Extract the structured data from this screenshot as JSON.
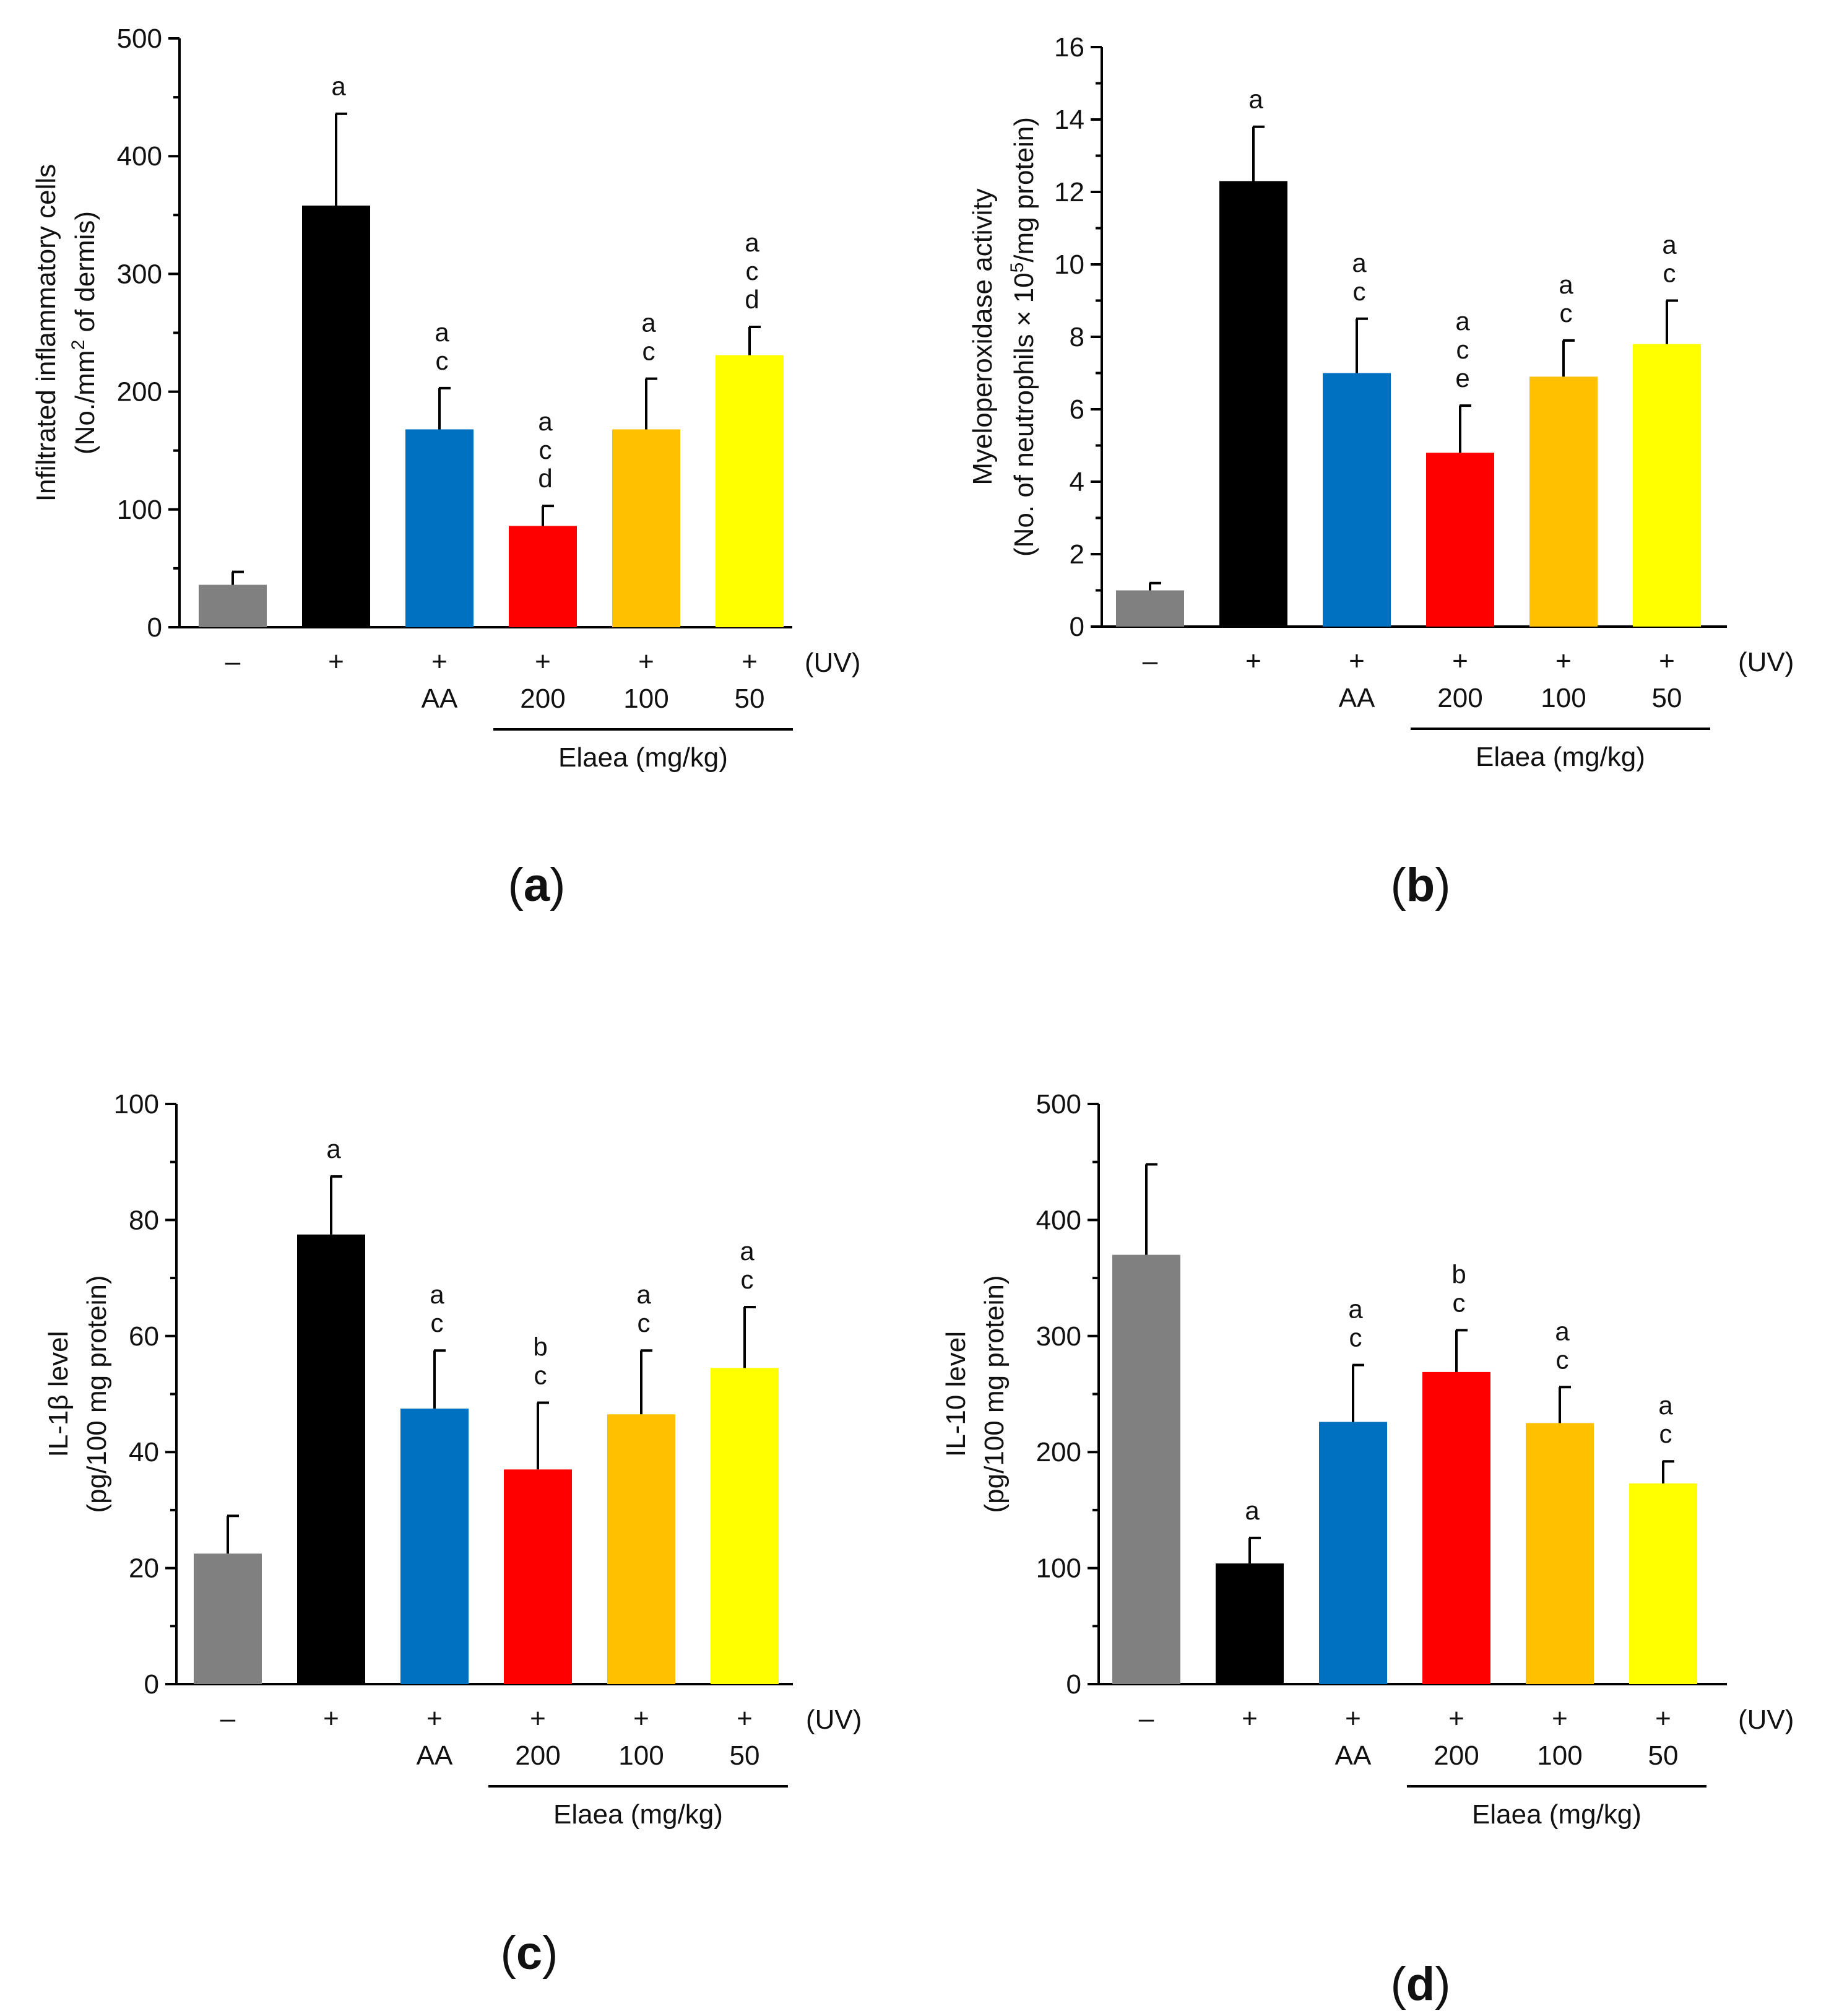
{
  "chart_data": [
    {
      "panel": "a",
      "type": "bar",
      "ylabel_line1": "Infiltrated inflammatory cells",
      "ylabel_line2_pre": "(No./mm",
      "ylabel_line2_sup": "2",
      "ylabel_line2_post": " of dermis)",
      "ylim": [
        0,
        500
      ],
      "yticks": [
        0,
        100,
        200,
        300,
        400,
        500
      ],
      "uv_label": "(UV)",
      "uv_row": [
        "–",
        "+",
        "+",
        "+",
        "+",
        "+"
      ],
      "treatment_row": [
        "",
        "",
        "AA",
        "200",
        "100",
        "50"
      ],
      "bracket_label": "Elaea (mg/kg)",
      "values": [
        36,
        358,
        168,
        86,
        168,
        231
      ],
      "errors": [
        11,
        78,
        35,
        17,
        43,
        24
      ],
      "significance": [
        [],
        [
          "a"
        ],
        [
          "a",
          "c"
        ],
        [
          "a",
          "c",
          "d"
        ],
        [
          "a",
          "c"
        ],
        [
          "a",
          "c",
          "d"
        ]
      ],
      "colors": [
        "#808080",
        "#000000",
        "#0070c0",
        "#ff0000",
        "#ffc000",
        "#ffff00"
      ]
    },
    {
      "panel": "b",
      "type": "bar",
      "ylabel_line1": "Myeloperoxidase activity",
      "ylabel_line2_pre": "(No. of neutrophils × 10",
      "ylabel_line2_sup": "5",
      "ylabel_line2_post": "/mg protein)",
      "ylim": [
        0,
        16
      ],
      "yticks": [
        0,
        2,
        4,
        6,
        8,
        10,
        12,
        14,
        16
      ],
      "uv_label": "(UV)",
      "uv_row": [
        "–",
        "+",
        "+",
        "+",
        "+",
        "+"
      ],
      "treatment_row": [
        "",
        "",
        "AA",
        "200",
        "100",
        "50"
      ],
      "bracket_label": "Elaea (mg/kg)",
      "values": [
        1.0,
        12.3,
        7.0,
        4.8,
        6.9,
        7.8
      ],
      "errors": [
        0.2,
        1.5,
        1.5,
        1.3,
        1.0,
        1.2
      ],
      "significance": [
        [],
        [
          "a"
        ],
        [
          "a",
          "c"
        ],
        [
          "a",
          "c",
          "e"
        ],
        [
          "a",
          "c"
        ],
        [
          "a",
          "c"
        ]
      ],
      "colors": [
        "#808080",
        "#000000",
        "#0070c0",
        "#ff0000",
        "#ffc000",
        "#ffff00"
      ]
    },
    {
      "panel": "c",
      "type": "bar",
      "ylabel_line1": "IL-1β level",
      "ylabel_line2_pre": "(pg/100 mg protein)",
      "ylabel_line2_sup": "",
      "ylabel_line2_post": "",
      "ylim": [
        0,
        100
      ],
      "yticks": [
        0,
        20,
        40,
        60,
        80,
        100
      ],
      "uv_label": "(UV)",
      "uv_row": [
        "–",
        "+",
        "+",
        "+",
        "+",
        "+"
      ],
      "treatment_row": [
        "",
        "",
        "AA",
        "200",
        "100",
        "50"
      ],
      "bracket_label": "Elaea (mg/kg)",
      "values": [
        22.5,
        77.5,
        47.5,
        37.0,
        46.5,
        54.5
      ],
      "errors": [
        6.5,
        10,
        10,
        11.5,
        11,
        10.5
      ],
      "significance": [
        [],
        [
          "a"
        ],
        [
          "a",
          "c"
        ],
        [
          "b",
          "c"
        ],
        [
          "a",
          "c"
        ],
        [
          "a",
          "c"
        ]
      ],
      "colors": [
        "#808080",
        "#000000",
        "#0070c0",
        "#ff0000",
        "#ffc000",
        "#ffff00"
      ]
    },
    {
      "panel": "d",
      "type": "bar",
      "ylabel_line1": "IL-10 level",
      "ylabel_line2_pre": "(pg/100 mg protein)",
      "ylabel_line2_sup": "",
      "ylabel_line2_post": "",
      "ylim": [
        0,
        500
      ],
      "yticks": [
        0,
        100,
        200,
        300,
        400,
        500
      ],
      "uv_label": "(UV)",
      "uv_row": [
        "–",
        "+",
        "+",
        "+",
        "+",
        "+"
      ],
      "treatment_row": [
        "",
        "",
        "AA",
        "200",
        "100",
        "50"
      ],
      "bracket_label": "Elaea (mg/kg)",
      "values": [
        370,
        104,
        226,
        269,
        225,
        173
      ],
      "errors": [
        78,
        22,
        49,
        36,
        31,
        19
      ],
      "significance": [
        [],
        [
          "a"
        ],
        [
          "a",
          "c"
        ],
        [
          "b",
          "c"
        ],
        [
          "a",
          "c"
        ],
        [
          "a",
          "c"
        ]
      ],
      "colors": [
        "#808080",
        "#000000",
        "#0070c0",
        "#ff0000",
        "#ffc000",
        "#ffff00"
      ]
    }
  ],
  "panel_labels": [
    {
      "pre": "(",
      "letter": "a",
      "post": ")"
    },
    {
      "pre": "(",
      "letter": "b",
      "post": ")"
    },
    {
      "pre": "(",
      "letter": "c",
      "post": ")"
    },
    {
      "pre": "(",
      "letter": "d",
      "post": ")"
    }
  ]
}
